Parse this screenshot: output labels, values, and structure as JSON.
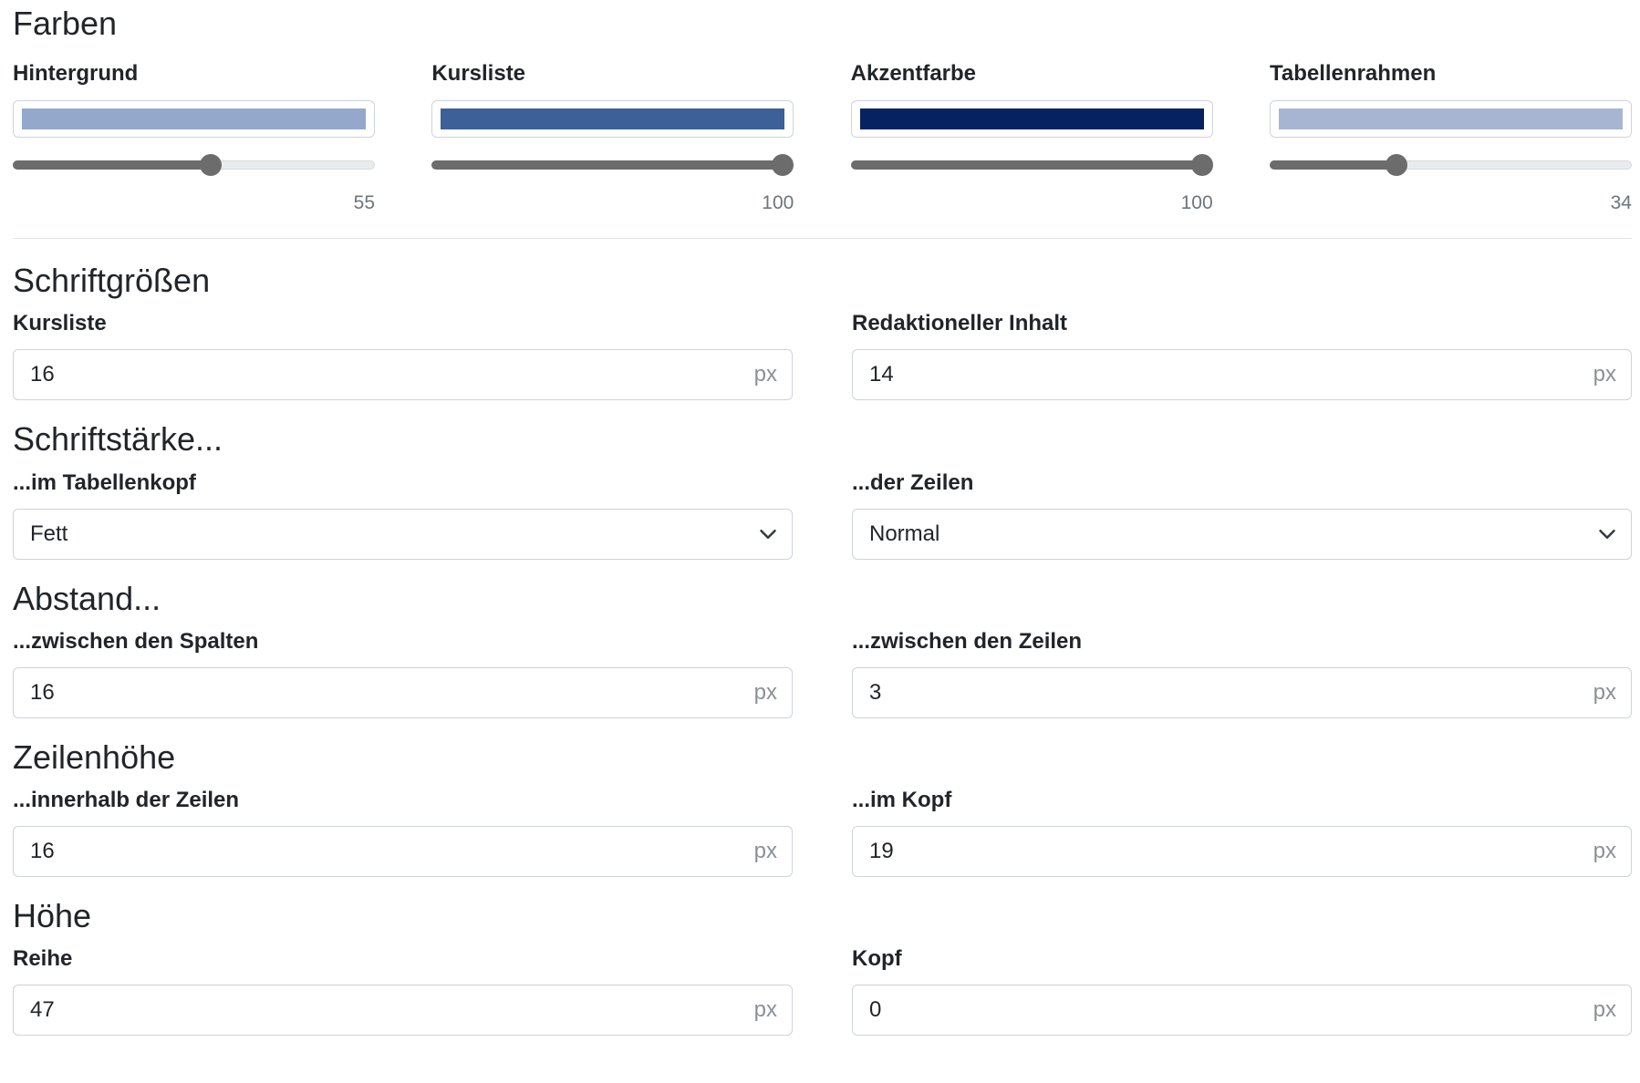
{
  "farben": {
    "title": "Farben",
    "items": [
      {
        "label": "Hintergrund",
        "color": "#93a8ca",
        "value": "55",
        "percent": 55
      },
      {
        "label": "Kursliste",
        "color": "#3d6099",
        "value": "100",
        "percent": 100
      },
      {
        "label": "Akzentfarbe",
        "color": "#062261",
        "value": "100",
        "percent": 100
      },
      {
        "label": "Tabellenrahmen",
        "color": "#a8b5d2",
        "value": "34",
        "percent": 34
      }
    ]
  },
  "schriftgroessen": {
    "title": "Schriftgrößen",
    "fields": [
      {
        "label": "Kursliste",
        "value": "16",
        "unit": "px"
      },
      {
        "label": "Redaktioneller Inhalt",
        "value": "14",
        "unit": "px"
      }
    ]
  },
  "schriftstaerke": {
    "title": "Schriftstärke...",
    "fields": [
      {
        "label": "...im Tabellenkopf",
        "value": "Fett"
      },
      {
        "label": "...der Zeilen",
        "value": "Normal"
      }
    ]
  },
  "abstand": {
    "title": "Abstand...",
    "fields": [
      {
        "label": "...zwischen den Spalten",
        "value": "16",
        "unit": "px"
      },
      {
        "label": "...zwischen den Zeilen",
        "value": "3",
        "unit": "px"
      }
    ]
  },
  "zeilenhoehe": {
    "title": "Zeilenhöhe",
    "fields": [
      {
        "label": "...innerhalb der Zeilen",
        "value": "16",
        "unit": "px"
      },
      {
        "label": "...im Kopf",
        "value": "19",
        "unit": "px"
      }
    ]
  },
  "hoehe": {
    "title": "Höhe",
    "fields": [
      {
        "label": "Reihe",
        "value": "47",
        "unit": "px"
      },
      {
        "label": "Kopf",
        "value": "0",
        "unit": "px"
      }
    ]
  },
  "icons": {
    "select_chevron": "chevron-down-icon"
  }
}
